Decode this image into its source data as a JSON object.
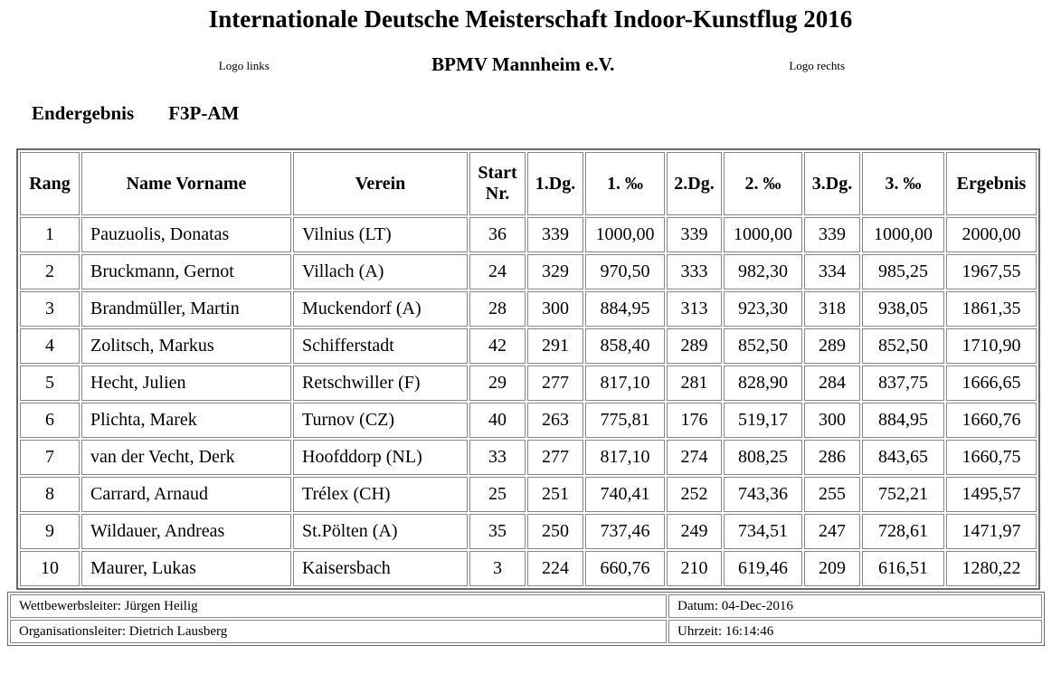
{
  "header": {
    "title": "Internationale Deutsche Meisterschaft Indoor-Kunstflug 2016",
    "logo_left": "Logo links",
    "organization": "BPMV Mannheim e.V.",
    "logo_right": "Logo rechts",
    "result_type": "Endergebnis",
    "class_name": "F3P-AM"
  },
  "table": {
    "columns": [
      "Rang",
      "Name Vorname",
      "Verein",
      "Start Nr.",
      "1.Dg.",
      "1. ‰",
      "2.Dg.",
      "2. ‰",
      "3.Dg.",
      "3. ‰",
      "Ergebnis"
    ],
    "rows": [
      [
        "1",
        "Pauzuolis, Donatas",
        "Vilnius (LT)",
        "36",
        "339",
        "1000,00",
        "339",
        "1000,00",
        "339",
        "1000,00",
        "2000,00"
      ],
      [
        "2",
        "Bruckmann, Gernot",
        "Villach (A)",
        "24",
        "329",
        "970,50",
        "333",
        "982,30",
        "334",
        "985,25",
        "1967,55"
      ],
      [
        "3",
        "Brandmüller, Martin",
        "Muckendorf (A)",
        "28",
        "300",
        "884,95",
        "313",
        "923,30",
        "318",
        "938,05",
        "1861,35"
      ],
      [
        "4",
        "Zolitsch, Markus",
        "Schifferstadt",
        "42",
        "291",
        "858,40",
        "289",
        "852,50",
        "289",
        "852,50",
        "1710,90"
      ],
      [
        "5",
        "Hecht, Julien",
        "Retschwiller (F)",
        "29",
        "277",
        "817,10",
        "281",
        "828,90",
        "284",
        "837,75",
        "1666,65"
      ],
      [
        "6",
        "Plichta, Marek",
        "Turnov (CZ)",
        "40",
        "263",
        "775,81",
        "176",
        "519,17",
        "300",
        "884,95",
        "1660,76"
      ],
      [
        "7",
        "van der Vecht, Derk",
        "Hoofddorp (NL)",
        "33",
        "277",
        "817,10",
        "274",
        "808,25",
        "286",
        "843,65",
        "1660,75"
      ],
      [
        "8",
        "Carrard, Arnaud",
        "Trélex (CH)",
        "25",
        "251",
        "740,41",
        "252",
        "743,36",
        "255",
        "752,21",
        "1495,57"
      ],
      [
        "9",
        "Wildauer, Andreas",
        "St.Pölten (A)",
        "35",
        "250",
        "737,46",
        "249",
        "734,51",
        "247",
        "728,61",
        "1471,97"
      ],
      [
        "10",
        "Maurer, Lukas",
        "Kaisersbach",
        "3",
        "224",
        "660,76",
        "210",
        "619,46",
        "209",
        "616,51",
        "1280,22"
      ]
    ]
  },
  "footer": {
    "competition_director": "Wettbewerbsleiter: Jürgen Heilig",
    "date": "Datum: 04-Dec-2016",
    "organisation_director": "Organisationsleiter: Dietrich Lausberg",
    "time": "Uhrzeit: 16:14:46"
  },
  "colors": {
    "text": "#000000",
    "background": "#ffffff",
    "table_border_outer": "#676767",
    "table_border_inner": "#878787"
  }
}
